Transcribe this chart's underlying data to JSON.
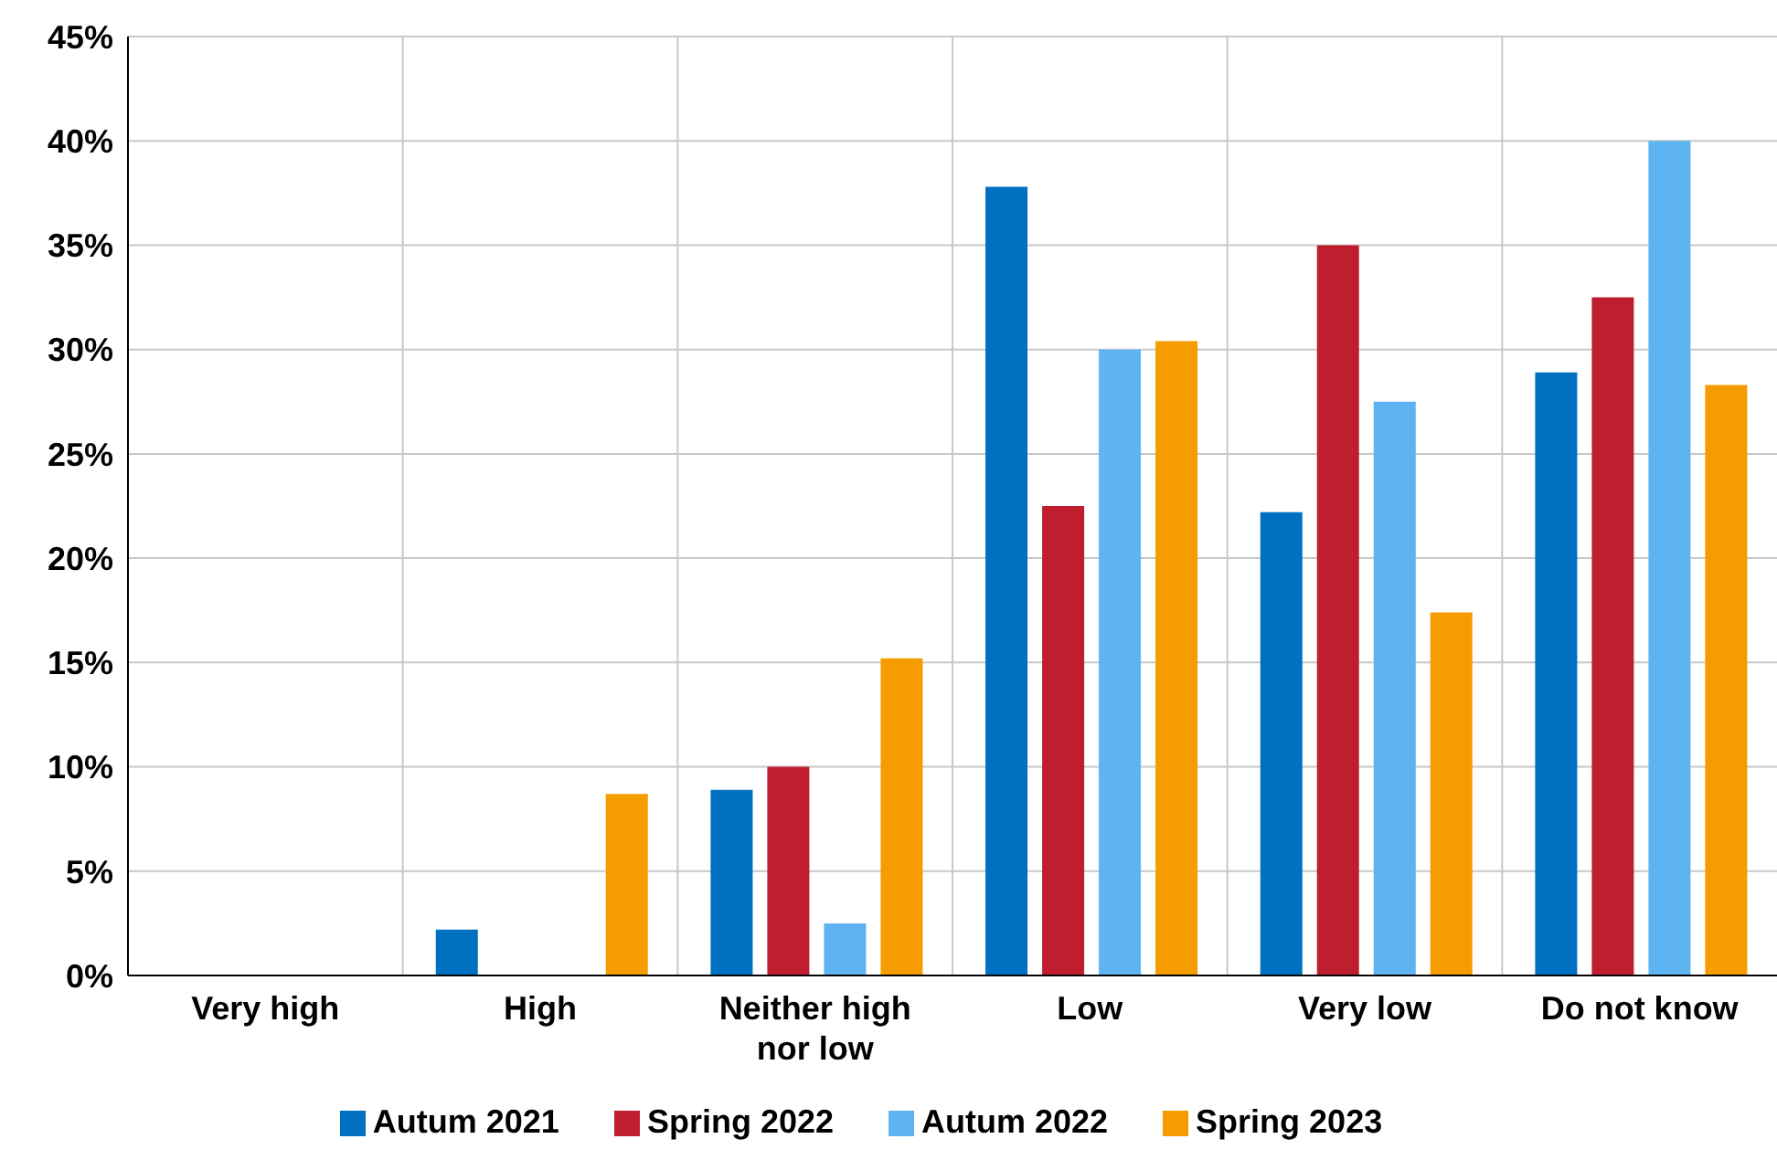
{
  "chart_data": {
    "type": "bar",
    "categories": [
      "Very high",
      "High",
      "Neither high nor low",
      "Low",
      "Very low",
      "Do not know"
    ],
    "series": [
      {
        "name": "Autum 2021",
        "color": "#0070c0",
        "values": [
          0,
          2.2,
          8.9,
          37.8,
          22.2,
          28.9
        ]
      },
      {
        "name": "Spring 2022",
        "color": "#be1e2d",
        "values": [
          0,
          0,
          10.0,
          22.5,
          35.0,
          32.5
        ]
      },
      {
        "name": "Autum 2022",
        "color": "#5eb4f0",
        "values": [
          0,
          0,
          2.5,
          30.0,
          27.5,
          40.0
        ]
      },
      {
        "name": "Spring 2023",
        "color": "#f59c00",
        "values": [
          0,
          8.7,
          15.2,
          30.4,
          17.4,
          28.3
        ]
      }
    ],
    "ylim": [
      0,
      45
    ],
    "yticks": [
      {
        "value": 0,
        "label": "0%"
      },
      {
        "value": 5,
        "label": "5%"
      },
      {
        "value": 10,
        "label": "10%"
      },
      {
        "value": 15,
        "label": "15%"
      },
      {
        "value": 20,
        "label": "20%"
      },
      {
        "value": 25,
        "label": "25%"
      },
      {
        "value": 30,
        "label": "30%"
      },
      {
        "value": 35,
        "label": "35%"
      },
      {
        "value": 40,
        "label": "40%"
      },
      {
        "value": 45,
        "label": "45%"
      }
    ],
    "grid": true,
    "legend": "bottom"
  }
}
